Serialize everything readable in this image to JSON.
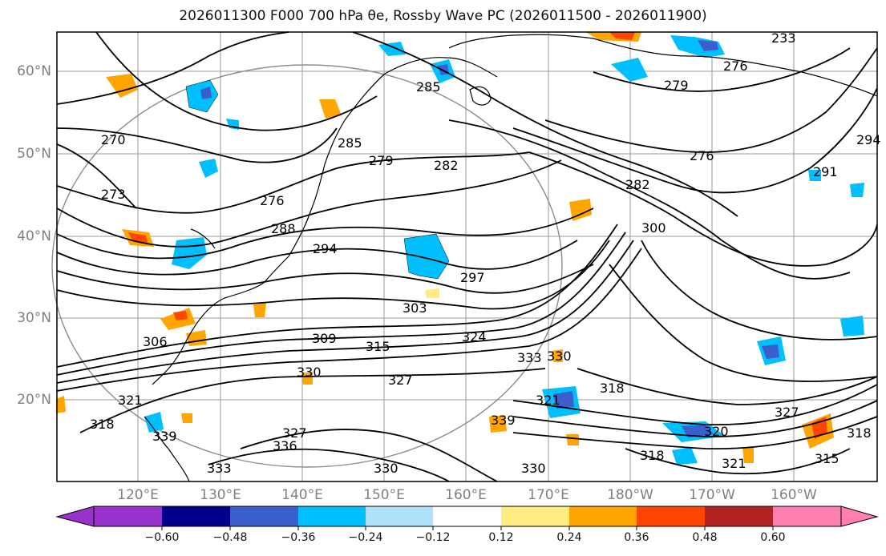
{
  "title": "2026011300 F000 700 hPa θe, Rossby Wave PC (2026011500 - 2026011900)",
  "axes": {
    "lat_labels": [
      "60°N",
      "50°N",
      "40°N",
      "30°N",
      "20°N"
    ],
    "lon_labels": [
      "120°E",
      "130°E",
      "140°E",
      "150°E",
      "160°E",
      "170°E",
      "180°W",
      "170°W",
      "160°W"
    ]
  },
  "contour_labels": [
    "233",
    "276",
    "279",
    "285",
    "285",
    "279",
    "282",
    "276",
    "294",
    "291",
    "270",
    "273",
    "276",
    "288",
    "294",
    "297",
    "282",
    "300",
    "303",
    "306",
    "309",
    "315",
    "324",
    "330",
    "333",
    "330",
    "318",
    "327",
    "321",
    "318",
    "321",
    "336",
    "339",
    "330",
    "327",
    "318",
    "320",
    "321",
    "315",
    "318",
    "339",
    "333",
    "327",
    "330"
  ],
  "colorbar": {
    "ticks": [
      "−0.60",
      "−0.48",
      "−0.36",
      "−0.24",
      "−0.12",
      "0.12",
      "0.24",
      "0.36",
      "0.48",
      "0.60"
    ],
    "colors": [
      "#9932cc",
      "#00008b",
      "#3a5fcd",
      "#00bfff",
      "#b0e0fa",
      "#ffffff",
      "#ffeb80",
      "#ffa500",
      "#ff4500",
      "#b22222",
      "#ff80b0"
    ]
  },
  "colors": {
    "grid": "#9a9a9a",
    "contour": "#000000",
    "coast": "#000000",
    "label": "#7f7f7f"
  }
}
